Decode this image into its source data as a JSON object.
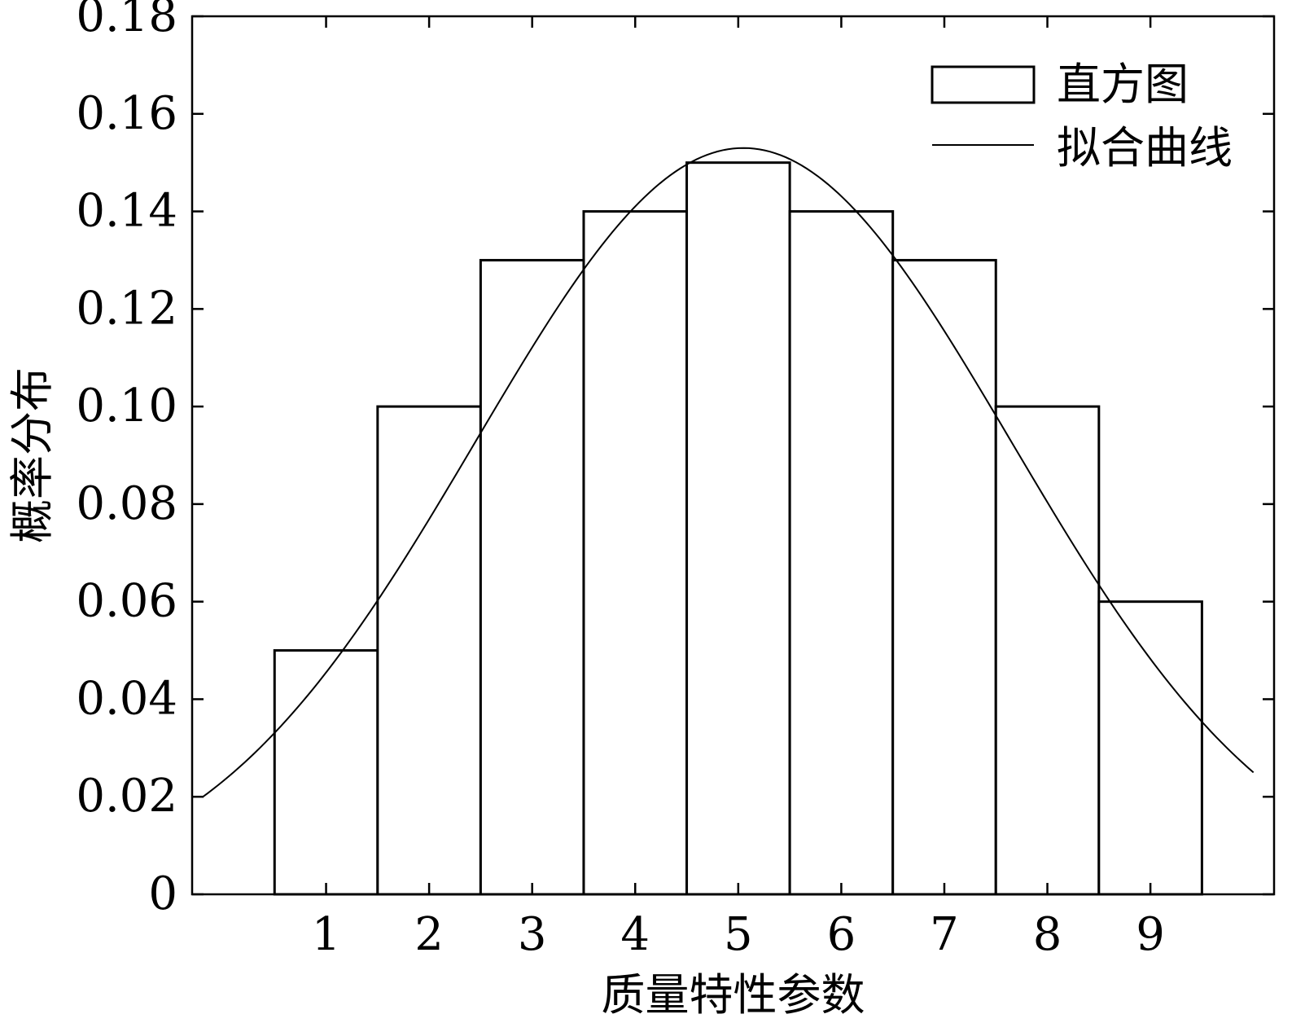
{
  "chart_data": {
    "type": "bar",
    "categories": [
      "1",
      "2",
      "3",
      "4",
      "5",
      "6",
      "7",
      "8",
      "9"
    ],
    "series": [
      {
        "name": "直方图",
        "type": "bar",
        "x": [
          1,
          2,
          3,
          4,
          5,
          6,
          7,
          8,
          9
        ],
        "values": [
          0.05,
          0.1,
          0.13,
          0.14,
          0.15,
          0.14,
          0.13,
          0.1,
          0.06
        ]
      },
      {
        "name": "拟合曲线",
        "type": "line",
        "curve": "normal",
        "mean": 5.05,
        "sd": 2.6,
        "peak": 0.153,
        "x_range": [
          -0.2,
          10.0
        ]
      }
    ],
    "xlabel": "质量特性参数",
    "ylabel": "概率分布",
    "xlim": [
      -0.3,
      10.2
    ],
    "ylim": [
      0,
      0.18
    ],
    "yticks": [
      "0",
      "0.02",
      "0.04",
      "0.06",
      "0.08",
      "0.10",
      "0.12",
      "0.14",
      "0.16",
      "0.18"
    ],
    "xticks": [
      "1",
      "2",
      "3",
      "4",
      "5",
      "6",
      "7",
      "8",
      "9"
    ],
    "legend": {
      "position": "top-right",
      "entries": [
        "直方图",
        "拟合曲线"
      ]
    },
    "grid": false
  }
}
